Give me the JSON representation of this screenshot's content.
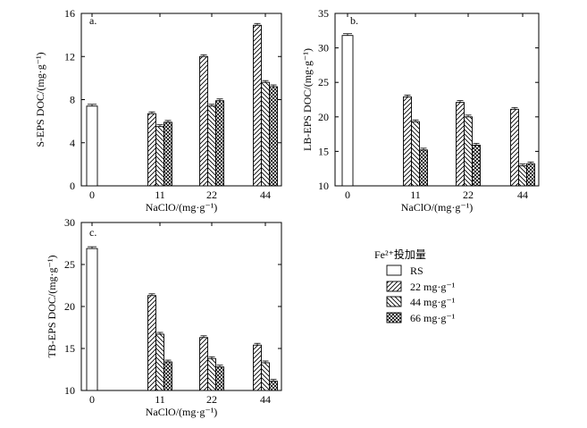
{
  "chart_data": [
    {
      "type": "bar",
      "id": "a",
      "panel_label": "a.",
      "xlabel": "NaClO/(mg·g⁻¹)",
      "ylabel": "S-EPS DOC/(mg·g⁻¹)",
      "ylim": [
        0,
        16
      ],
      "yticks": [
        "0",
        "4",
        "8",
        "12",
        "16"
      ],
      "categories": [
        "0",
        "11",
        "22",
        "44"
      ],
      "series": [
        {
          "name": "RS",
          "values": [
            7.4,
            null,
            null,
            null
          ]
        },
        {
          "name": "22 mg·g⁻¹",
          "values": [
            null,
            6.7,
            12.0,
            14.9
          ]
        },
        {
          "name": "44 mg·g⁻¹",
          "values": [
            null,
            5.5,
            7.4,
            9.6
          ]
        },
        {
          "name": "66 mg·g⁻¹",
          "values": [
            null,
            5.9,
            7.9,
            9.2
          ]
        }
      ]
    },
    {
      "type": "bar",
      "id": "b",
      "panel_label": "b.",
      "xlabel": "NaClO/(mg·g⁻¹)",
      "ylabel": "LB-EPS DOC/(mg·g⁻¹)",
      "ylim": [
        10,
        35
      ],
      "yticks": [
        "10",
        "15",
        "20",
        "25",
        "30",
        "35"
      ],
      "categories": [
        "0",
        "11",
        "22",
        "44"
      ],
      "series": [
        {
          "name": "RS",
          "values": [
            31.8,
            null,
            null,
            null
          ]
        },
        {
          "name": "22 mg·g⁻¹",
          "values": [
            null,
            22.9,
            22.1,
            21.1
          ]
        },
        {
          "name": "44 mg·g⁻¹",
          "values": [
            null,
            19.3,
            20.0,
            12.9
          ]
        },
        {
          "name": "66 mg·g⁻¹",
          "values": [
            null,
            15.2,
            15.9,
            13.2
          ]
        }
      ]
    },
    {
      "type": "bar",
      "id": "c",
      "panel_label": "c.",
      "xlabel": "NaClO/(mg·g⁻¹)",
      "ylabel": "TB-EPS DOC/(mg·g⁻¹)",
      "ylim": [
        10,
        30
      ],
      "yticks": [
        "10",
        "15",
        "20",
        "25",
        "30"
      ],
      "categories": [
        "0",
        "11",
        "22",
        "44"
      ],
      "series": [
        {
          "name": "RS",
          "values": [
            26.9,
            null,
            null,
            null
          ]
        },
        {
          "name": "22 mg·g⁻¹",
          "values": [
            null,
            21.3,
            16.3,
            15.4
          ]
        },
        {
          "name": "44 mg·g⁻¹",
          "values": [
            null,
            16.7,
            13.8,
            13.3
          ]
        },
        {
          "name": "66 mg·g⁻¹",
          "values": [
            null,
            13.4,
            12.8,
            11.1
          ]
        }
      ]
    }
  ],
  "legend": {
    "title": "Fe²⁺投加量",
    "entries": [
      "RS",
      "22 mg·g⁻¹",
      "44 mg·g⁻¹",
      "66 mg·g⁻¹"
    ]
  },
  "colors": {
    "bar_fill": "#ffffff",
    "stroke": "#000000"
  }
}
